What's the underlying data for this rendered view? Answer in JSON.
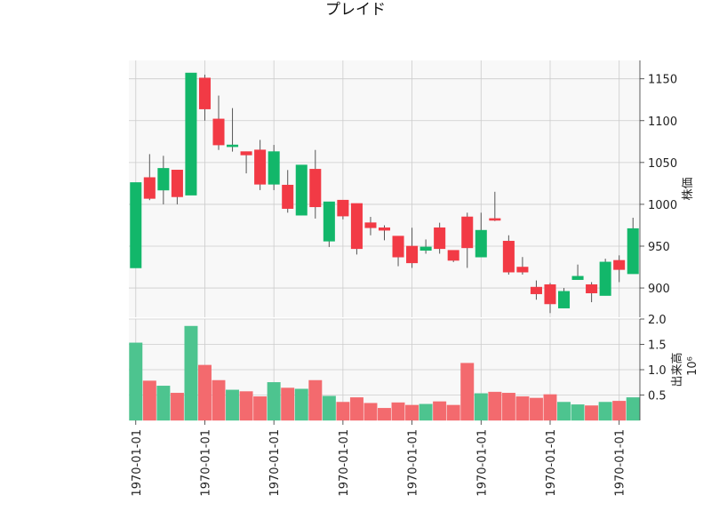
{
  "chart_data": {
    "type": "candlestick",
    "title": "プレイド",
    "colors": {
      "up": "#12b76a",
      "down": "#f23a45",
      "up_volume": "#4dc48f",
      "down_volume": "#f36a6e",
      "grid": "#cccccc",
      "background": "#f8f8f8"
    },
    "price_panel": {
      "ylabel": "株価",
      "ylim": [
        865,
        1172
      ],
      "yticks": [
        900,
        950,
        1000,
        1050,
        1100,
        1150
      ],
      "axis_side": "right"
    },
    "volume_panel": {
      "ylabel": "出来高",
      "scale_label": "10⁶",
      "ylim": [
        0,
        2.0
      ],
      "yticks": [
        0.5,
        1.0,
        1.5,
        2.0
      ],
      "axis_side": "right"
    },
    "xticks": {
      "labels": [
        "1970-01-01",
        "1970-01-01",
        "1970-01-01",
        "1970-01-01",
        "1970-01-01",
        "1970-01-01",
        "1970-01-01",
        "1970-01-01"
      ],
      "positions": [
        0,
        5,
        10,
        15,
        20,
        25,
        30,
        35
      ]
    },
    "ohlc": [
      {
        "o": 924,
        "h": 1026,
        "l": 924,
        "c": 1026,
        "v": 1.53
      },
      {
        "o": 1032,
        "h": 1060,
        "l": 1005,
        "c": 1007,
        "v": 0.78
      },
      {
        "o": 1017,
        "h": 1058,
        "l": 1000,
        "c": 1043,
        "v": 0.68
      },
      {
        "o": 1041,
        "h": 1041,
        "l": 1000,
        "c": 1009,
        "v": 0.54
      },
      {
        "o": 1011,
        "h": 1157,
        "l": 1011,
        "c": 1157,
        "v": 1.86
      },
      {
        "o": 1151,
        "h": 1155,
        "l": 1100,
        "c": 1114,
        "v": 1.09
      },
      {
        "o": 1102,
        "h": 1130,
        "l": 1065,
        "c": 1071,
        "v": 0.79
      },
      {
        "o": 1069,
        "h": 1115,
        "l": 1063,
        "c": 1071,
        "v": 0.6
      },
      {
        "o": 1063,
        "h": 1063,
        "l": 1037,
        "c": 1059,
        "v": 0.57
      },
      {
        "o": 1065,
        "h": 1077,
        "l": 1017,
        "c": 1024,
        "v": 0.47
      },
      {
        "o": 1024,
        "h": 1071,
        "l": 1017,
        "c": 1063,
        "v": 0.75
      },
      {
        "o": 1023,
        "h": 1041,
        "l": 990,
        "c": 995,
        "v": 0.64
      },
      {
        "o": 987,
        "h": 1047,
        "l": 987,
        "c": 1047,
        "v": 0.62
      },
      {
        "o": 1042,
        "h": 1065,
        "l": 983,
        "c": 997,
        "v": 0.79
      },
      {
        "o": 956,
        "h": 1003,
        "l": 949,
        "c": 1003,
        "v": 0.48
      },
      {
        "o": 1005,
        "h": 1005,
        "l": 982,
        "c": 986,
        "v": 0.36
      },
      {
        "o": 1001,
        "h": 1001,
        "l": 940,
        "c": 947,
        "v": 0.45
      },
      {
        "o": 978,
        "h": 985,
        "l": 963,
        "c": 972,
        "v": 0.34
      },
      {
        "o": 972,
        "h": 975,
        "l": 957,
        "c": 969,
        "v": 0.24
      },
      {
        "o": 962,
        "h": 962,
        "l": 926,
        "c": 937,
        "v": 0.35
      },
      {
        "o": 950,
        "h": 972,
        "l": 924,
        "c": 930,
        "v": 0.3
      },
      {
        "o": 945,
        "h": 958,
        "l": 941,
        "c": 949,
        "v": 0.32
      },
      {
        "o": 972,
        "h": 978,
        "l": 941,
        "c": 947,
        "v": 0.37
      },
      {
        "o": 945,
        "h": 945,
        "l": 931,
        "c": 933,
        "v": 0.3
      },
      {
        "o": 985,
        "h": 990,
        "l": 924,
        "c": 948,
        "v": 1.13
      },
      {
        "o": 937,
        "h": 990,
        "l": 937,
        "c": 969,
        "v": 0.53
      },
      {
        "o": 983,
        "h": 1015,
        "l": 980,
        "c": 981,
        "v": 0.56
      },
      {
        "o": 956,
        "h": 963,
        "l": 916,
        "c": 919,
        "v": 0.54
      },
      {
        "o": 925,
        "h": 937,
        "l": 916,
        "c": 919,
        "v": 0.47
      },
      {
        "o": 901,
        "h": 909,
        "l": 886,
        "c": 893,
        "v": 0.44
      },
      {
        "o": 904,
        "h": 906,
        "l": 870,
        "c": 881,
        "v": 0.51
      },
      {
        "o": 876,
        "h": 900,
        "l": 876,
        "c": 896,
        "v": 0.36
      },
      {
        "o": 910,
        "h": 928,
        "l": 910,
        "c": 914,
        "v": 0.31
      },
      {
        "o": 904,
        "h": 907,
        "l": 883,
        "c": 894,
        "v": 0.29
      },
      {
        "o": 891,
        "h": 935,
        "l": 891,
        "c": 931,
        "v": 0.36
      },
      {
        "o": 933,
        "h": 939,
        "l": 907,
        "c": 922,
        "v": 0.38
      },
      {
        "o": 917,
        "h": 984,
        "l": 917,
        "c": 971,
        "v": 0.45
      }
    ]
  }
}
